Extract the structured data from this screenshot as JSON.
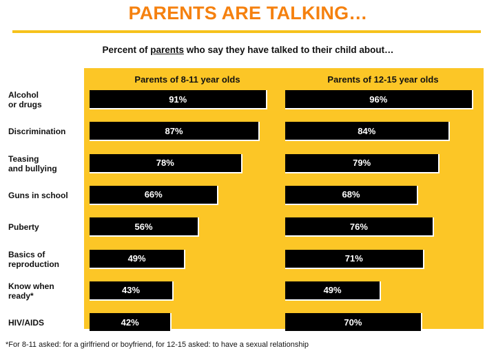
{
  "title": "PARENTS ARE TALKING…",
  "subtitle_pre": "Percent of ",
  "subtitle_emph": "parents",
  "subtitle_post": " who say they have talked to their child about…",
  "footnote": "*For 8-11 asked: for a girlfriend or boyfriend, for 12-15 asked: to have a sexual relationship",
  "colors": {
    "title": "#f5810f",
    "panel": "#fcc626",
    "bar": "#000000"
  },
  "chart_data": {
    "type": "bar",
    "orientation": "horizontal",
    "categories": [
      [
        "Alcohol",
        "or drugs"
      ],
      [
        "Discrimination"
      ],
      [
        "Teasing",
        "and bullying"
      ],
      [
        "Guns in school"
      ],
      [
        "Puberty"
      ],
      [
        "Basics of",
        "reproduction"
      ],
      [
        "Know when",
        "ready*"
      ],
      [
        "HIV/AIDS"
      ]
    ],
    "series": [
      {
        "name": "Parents of 8-11 year olds",
        "values": [
          91,
          87,
          78,
          66,
          56,
          49,
          43,
          42
        ]
      },
      {
        "name": "Parents of 12-15 year olds",
        "values": [
          96,
          84,
          79,
          68,
          76,
          71,
          49,
          70
        ]
      }
    ],
    "value_suffix": "%",
    "xlim": [
      0,
      100
    ]
  }
}
